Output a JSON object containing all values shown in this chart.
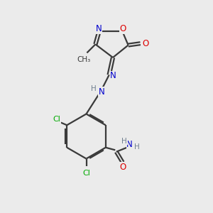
{
  "bg_color": "#ebebeb",
  "bond_color": "#3a3a3a",
  "N_color": "#0000cc",
  "O_color": "#dd0000",
  "Cl_color": "#00aa00",
  "H_color": "#708090",
  "line_width": 1.6,
  "figsize": [
    3.0,
    3.0
  ],
  "dpi": 100,
  "xlim": [
    0,
    10
  ],
  "ylim": [
    0,
    10
  ]
}
